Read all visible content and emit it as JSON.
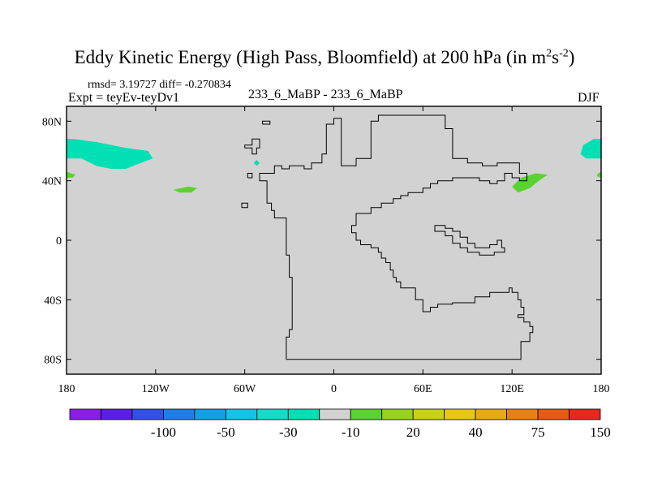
{
  "header": {
    "title_main": "Eddy Kinetic Energy (High Pass, Bloomfield) at 200 hPa (in m",
    "title_sup1": "2",
    "title_mid": "s",
    "title_sup2": "-2",
    "title_end": ")",
    "stats": "rmsd= 3.19727 diff= -0.270834",
    "expt": "Expt = teyEv-teyDv1",
    "subtitle": "233_6_MaBP - 233_6_MaBP",
    "season": "DJF"
  },
  "axes": {
    "y_ticks": [
      {
        "label": "80N",
        "lat": 80
      },
      {
        "label": "40N",
        "lat": 40
      },
      {
        "label": "0",
        "lat": 0
      },
      {
        "label": "40S",
        "lat": -40
      },
      {
        "label": "80S",
        "lat": -80
      }
    ],
    "x_ticks": [
      {
        "label": "180",
        "lon": -180
      },
      {
        "label": "120W",
        "lon": -120
      },
      {
        "label": "60W",
        "lon": -60
      },
      {
        "label": "0",
        "lon": 0
      },
      {
        "label": "60E",
        "lon": 60
      },
      {
        "label": "120E",
        "lon": 120
      },
      {
        "label": "180",
        "lon": 180
      }
    ],
    "lon_range": [
      -180,
      180
    ],
    "lat_range": [
      -90,
      90
    ]
  },
  "colorbar": {
    "colors": [
      "#8a1ee6",
      "#5a1ee6",
      "#3250e6",
      "#1e7ee6",
      "#14a0e6",
      "#14c4e6",
      "#14dcc8",
      "#00e0b4",
      "#d2d2d2",
      "#5ad232",
      "#96d21e",
      "#c8d214",
      "#e6c814",
      "#e6aa14",
      "#e68214",
      "#e65a14",
      "#e6281e"
    ],
    "labels": [
      {
        "text": "-100",
        "boundary": 2
      },
      {
        "text": "-50",
        "boundary": 4
      },
      {
        "text": "-30",
        "boundary": 6
      },
      {
        "text": "-10",
        "boundary": 8
      },
      {
        "text": "20",
        "boundary": 10
      },
      {
        "text": "40",
        "boundary": 12
      },
      {
        "text": "75",
        "boundary": 14
      },
      {
        "text": "150",
        "boundary": 16
      }
    ]
  },
  "map": {
    "background_color": "#d2d2d2",
    "outline_color": "#000000",
    "outline_path": [
      [
        -32,
        -80
      ],
      [
        -32,
        -65
      ],
      [
        -30,
        -65
      ],
      [
        -30,
        -60
      ],
      [
        -28,
        -60
      ],
      [
        -28,
        -25
      ],
      [
        -30,
        -25
      ],
      [
        -30,
        -10
      ],
      [
        -32,
        -10
      ],
      [
        -32,
        15
      ],
      [
        -40,
        15
      ],
      [
        -40,
        20
      ],
      [
        -42,
        20
      ],
      [
        -42,
        25
      ],
      [
        -45,
        25
      ],
      [
        -45,
        40
      ],
      [
        -50,
        40
      ],
      [
        -50,
        45
      ],
      [
        -40,
        45
      ],
      [
        -40,
        50
      ],
      [
        -35,
        50
      ],
      [
        -35,
        48
      ],
      [
        -30,
        48
      ],
      [
        -30,
        50
      ],
      [
        -20,
        50
      ],
      [
        -20,
        48
      ],
      [
        -15,
        48
      ],
      [
        -15,
        52
      ],
      [
        -8,
        52
      ],
      [
        -8,
        58
      ],
      [
        -5,
        58
      ],
      [
        -5,
        78
      ],
      [
        0,
        78
      ],
      [
        0,
        82
      ],
      [
        5,
        82
      ],
      [
        5,
        50
      ],
      [
        15,
        50
      ],
      [
        15,
        55
      ],
      [
        25,
        55
      ],
      [
        25,
        80
      ],
      [
        30,
        80
      ],
      [
        30,
        84
      ],
      [
        75,
        84
      ],
      [
        75,
        75
      ],
      [
        80,
        75
      ],
      [
        80,
        55
      ],
      [
        90,
        55
      ],
      [
        90,
        52
      ],
      [
        100,
        52
      ],
      [
        100,
        50
      ],
      [
        110,
        50
      ],
      [
        110,
        52
      ],
      [
        125,
        52
      ],
      [
        125,
        45
      ],
      [
        130,
        45
      ],
      [
        130,
        40
      ],
      [
        125,
        40
      ],
      [
        125,
        42
      ],
      [
        120,
        42
      ],
      [
        120,
        45
      ],
      [
        115,
        45
      ],
      [
        115,
        40
      ],
      [
        110,
        40
      ],
      [
        110,
        38
      ],
      [
        105,
        38
      ],
      [
        105,
        40
      ],
      [
        98,
        40
      ],
      [
        98,
        42
      ],
      [
        80,
        42
      ],
      [
        80,
        40
      ],
      [
        70,
        40
      ],
      [
        70,
        38
      ],
      [
        65,
        38
      ],
      [
        65,
        35
      ],
      [
        60,
        35
      ],
      [
        60,
        32
      ],
      [
        50,
        32
      ],
      [
        50,
        30
      ],
      [
        45,
        30
      ],
      [
        45,
        28
      ],
      [
        40,
        28
      ],
      [
        40,
        25
      ],
      [
        32,
        25
      ],
      [
        32,
        22
      ],
      [
        25,
        22
      ],
      [
        25,
        18
      ],
      [
        15,
        18
      ],
      [
        15,
        10
      ],
      [
        12,
        10
      ],
      [
        12,
        5
      ],
      [
        15,
        5
      ],
      [
        15,
        0
      ],
      [
        18,
        0
      ],
      [
        18,
        -3
      ],
      [
        25,
        -3
      ],
      [
        25,
        -5
      ],
      [
        30,
        -5
      ],
      [
        30,
        -8
      ],
      [
        32,
        -8
      ],
      [
        32,
        -12
      ],
      [
        35,
        -12
      ],
      [
        35,
        -15
      ],
      [
        38,
        -15
      ],
      [
        38,
        -20
      ],
      [
        40,
        -20
      ],
      [
        40,
        -25
      ],
      [
        42,
        -25
      ],
      [
        42,
        -28
      ],
      [
        45,
        -28
      ],
      [
        45,
        -32
      ],
      [
        55,
        -32
      ],
      [
        55,
        -40
      ],
      [
        60,
        -40
      ],
      [
        60,
        -45
      ],
      [
        60,
        -45
      ],
      [
        60,
        -48
      ],
      [
        65,
        -48
      ],
      [
        65,
        -45
      ],
      [
        70,
        -45
      ],
      [
        70,
        -43
      ],
      [
        80,
        -43
      ],
      [
        80,
        -42
      ],
      [
        95,
        -42
      ],
      [
        95,
        -38
      ],
      [
        105,
        -38
      ],
      [
        105,
        -35
      ],
      [
        118,
        -35
      ],
      [
        118,
        -32
      ],
      [
        120,
        -32
      ],
      [
        120,
        -35
      ],
      [
        124,
        -35
      ],
      [
        124,
        -40
      ],
      [
        126,
        -40
      ],
      [
        126,
        -45
      ],
      [
        128,
        -45
      ],
      [
        128,
        -50
      ],
      [
        124,
        -50
      ],
      [
        124,
        -52
      ],
      [
        128,
        -52
      ],
      [
        128,
        -55
      ],
      [
        132,
        -55
      ],
      [
        132,
        -58
      ],
      [
        134,
        -58
      ],
      [
        134,
        -62
      ],
      [
        132,
        -62
      ],
      [
        132,
        -68
      ],
      [
        126,
        -68
      ],
      [
        126,
        -80
      ],
      [
        -32,
        -80
      ]
    ],
    "inner_path": [
      [
        68,
        8
      ],
      [
        68,
        10
      ],
      [
        75,
        10
      ],
      [
        75,
        8
      ],
      [
        80,
        8
      ],
      [
        80,
        6
      ],
      [
        85,
        6
      ],
      [
        85,
        2
      ],
      [
        90,
        2
      ],
      [
        90,
        -2
      ],
      [
        95,
        -2
      ],
      [
        95,
        -5
      ],
      [
        105,
        -5
      ],
      [
        105,
        -3
      ],
      [
        110,
        -3
      ],
      [
        110,
        0
      ],
      [
        113,
        0
      ],
      [
        113,
        -5
      ],
      [
        115,
        -5
      ],
      [
        115,
        -8
      ],
      [
        108,
        -8
      ],
      [
        108,
        -10
      ],
      [
        98,
        -10
      ],
      [
        98,
        -8
      ],
      [
        90,
        -8
      ],
      [
        90,
        -5
      ],
      [
        85,
        -5
      ],
      [
        85,
        -2
      ],
      [
        80,
        -2
      ],
      [
        80,
        3
      ],
      [
        75,
        3
      ],
      [
        75,
        6
      ],
      [
        68,
        6
      ],
      [
        68,
        8
      ]
    ],
    "small_islands": [
      [
        [
          -48,
          78
        ],
        [
          -48,
          80
        ],
        [
          -43,
          80
        ],
        [
          -43,
          78
        ],
        [
          -48,
          78
        ]
      ],
      [
        [
          -60,
          62
        ],
        [
          -60,
          64
        ],
        [
          -55,
          64
        ],
        [
          -55,
          68
        ],
        [
          -50,
          68
        ],
        [
          -50,
          62
        ],
        [
          -52,
          62
        ],
        [
          -52,
          58
        ],
        [
          -55,
          58
        ],
        [
          -55,
          62
        ],
        [
          -60,
          62
        ]
      ],
      [
        [
          -58,
          42
        ],
        [
          -58,
          45
        ],
        [
          -55,
          45
        ],
        [
          -55,
          42
        ],
        [
          -58,
          42
        ]
      ],
      [
        [
          -62,
          22
        ],
        [
          -62,
          25
        ],
        [
          -58,
          25
        ],
        [
          -58,
          22
        ],
        [
          -62,
          22
        ]
      ]
    ],
    "positive_patches": [
      {
        "color": "#00e0b4",
        "points": [
          [
            -180,
            68
          ],
          [
            -180,
            55
          ],
          [
            -170,
            55
          ],
          [
            -160,
            50
          ],
          [
            -150,
            48
          ],
          [
            -140,
            48
          ],
          [
            -130,
            52
          ],
          [
            -122,
            55
          ],
          [
            -125,
            60
          ],
          [
            -140,
            62
          ],
          [
            -160,
            66
          ],
          [
            -175,
            68
          ]
        ]
      },
      {
        "color": "#00e0b4",
        "points": [
          [
            180,
            68
          ],
          [
            180,
            55
          ],
          [
            170,
            55
          ],
          [
            166,
            58
          ],
          [
            168,
            64
          ],
          [
            175,
            68
          ]
        ]
      },
      {
        "color": "#00e0b4",
        "points": [
          [
            -54,
            52
          ],
          [
            -52,
            50
          ],
          [
            -50,
            52
          ],
          [
            -52,
            54
          ]
        ]
      },
      {
        "color": "#5ad232",
        "points": [
          [
            -180,
            46
          ],
          [
            -180,
            42
          ],
          [
            -176,
            42
          ],
          [
            -174,
            44
          ]
        ]
      },
      {
        "color": "#5ad232",
        "points": [
          [
            180,
            46
          ],
          [
            180,
            42
          ],
          [
            177,
            43
          ],
          [
            178,
            45
          ]
        ]
      },
      {
        "color": "#5ad232",
        "points": [
          [
            -108,
            34
          ],
          [
            -104,
            32
          ],
          [
            -96,
            32
          ],
          [
            -92,
            35
          ],
          [
            -98,
            36
          ]
        ]
      },
      {
        "color": "#5ad232",
        "points": [
          [
            120,
            36
          ],
          [
            124,
            32
          ],
          [
            132,
            35
          ],
          [
            138,
            40
          ],
          [
            144,
            44
          ],
          [
            136,
            45
          ],
          [
            126,
            42
          ]
        ]
      }
    ]
  }
}
